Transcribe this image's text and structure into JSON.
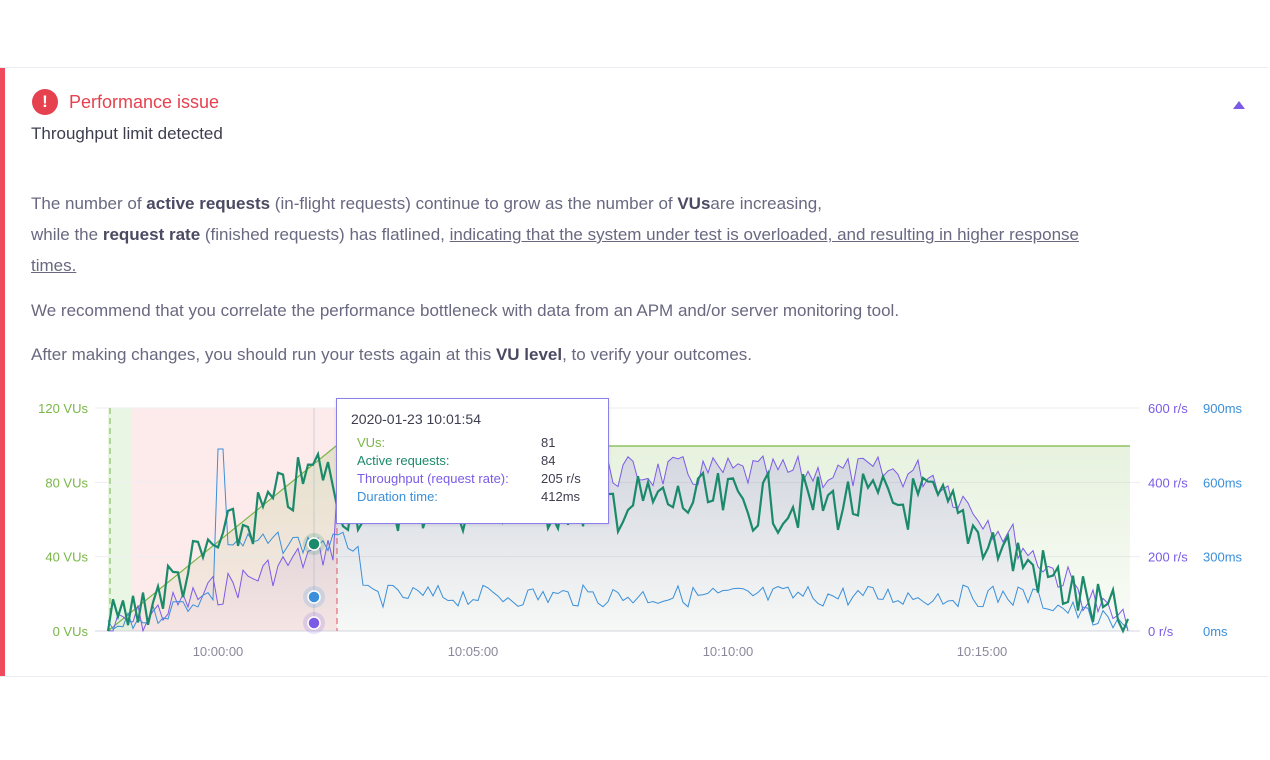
{
  "alert": {
    "title": "Performance issue",
    "subtitle": "Throughput limit detected"
  },
  "body": {
    "p1_a": "The number of ",
    "p1_b": "active requests",
    "p1_c": " (in-flight requests) continue to grow as the number of ",
    "p1_d": "VUs",
    "p1_e": "are increasing,",
    "p2_a": "while the ",
    "p2_b": "request rate",
    "p2_c": " (finished requests) has flatlined, ",
    "p2_link1": "indicating that the system under test is overloaded, and resulting in higher response",
    "p2_link2": "times.",
    "p3": "We recommend that you correlate the performance bottleneck with data from an APM and/or server monitoring tool.",
    "p4_a": "After making changes, you should run your tests again at this ",
    "p4_b": "VU level",
    "p4_c": ", to verify your outcomes."
  },
  "tooltip": {
    "time": "2020-01-23 10:01:54",
    "rows": [
      {
        "label": "VUs:",
        "value": "81",
        "color": "#7ab648"
      },
      {
        "label": "Active requests:",
        "value": "84",
        "color": "#1b8a6b"
      },
      {
        "label": "Throughput (request rate):",
        "value": "205 r/s",
        "color": "#7b5be6"
      },
      {
        "label": "Duration time:",
        "value": "412ms",
        "color": "#3b8fd9"
      }
    ]
  },
  "colors": {
    "vus": "#7ab648",
    "active": "#1b8a6b",
    "throughput": "#7b5be6",
    "duration": "#3b8fd9",
    "alert": "#e5414f"
  },
  "chart_data": {
    "type": "line",
    "x_ticks": [
      "10:00:00",
      "10:05:00",
      "10:10:00",
      "10:15:00"
    ],
    "y_left_ticks": [
      "120 VUs",
      "80 VUs",
      "40 VUs",
      "0 VUs"
    ],
    "y_right1_ticks": [
      "600 r/s",
      "400 r/s",
      "200 r/s",
      "0 r/s"
    ],
    "y_right2_ticks": [
      "900ms",
      "600ms",
      "300ms",
      "0ms"
    ],
    "series": [
      {
        "name": "VUs",
        "color": "#7ab648",
        "x": [
          0,
          3.1,
          11.3,
          17.8
        ],
        "values": [
          0,
          100,
          100,
          0
        ]
      },
      {
        "name": "Active requests",
        "color": "#1b8a6b"
      },
      {
        "name": "Throughput (request rate)",
        "color": "#7b5be6"
      },
      {
        "name": "Duration time",
        "color": "#3b8fd9"
      }
    ],
    "ylim_left": [
      0,
      120
    ],
    "ylim_throughput": [
      0,
      600
    ],
    "ylim_duration": [
      0,
      900
    ]
  }
}
